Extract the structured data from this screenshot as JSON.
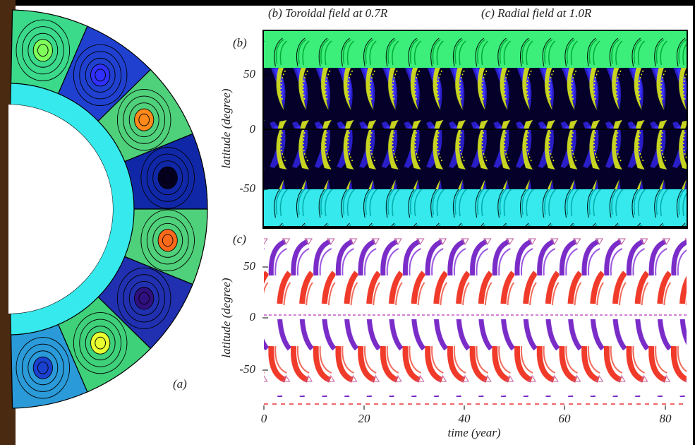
{
  "figure": {
    "titles": [
      "(b) Toroidal field at 0.7R",
      "(c) Radial field at 1.0R"
    ],
    "panel_a": {
      "label": "(a)"
    },
    "panel_b": {
      "label": "(b)",
      "ylabel": "latitude (degree)",
      "yticks": [
        50,
        0,
        -50
      ]
    },
    "panel_c": {
      "label": "(c)",
      "ylabel": "latitude (degree)",
      "yticks": [
        50,
        0,
        -50
      ]
    },
    "xlabel": "time (year)",
    "xticks": [
      0,
      20,
      40,
      60,
      80
    ]
  }
}
